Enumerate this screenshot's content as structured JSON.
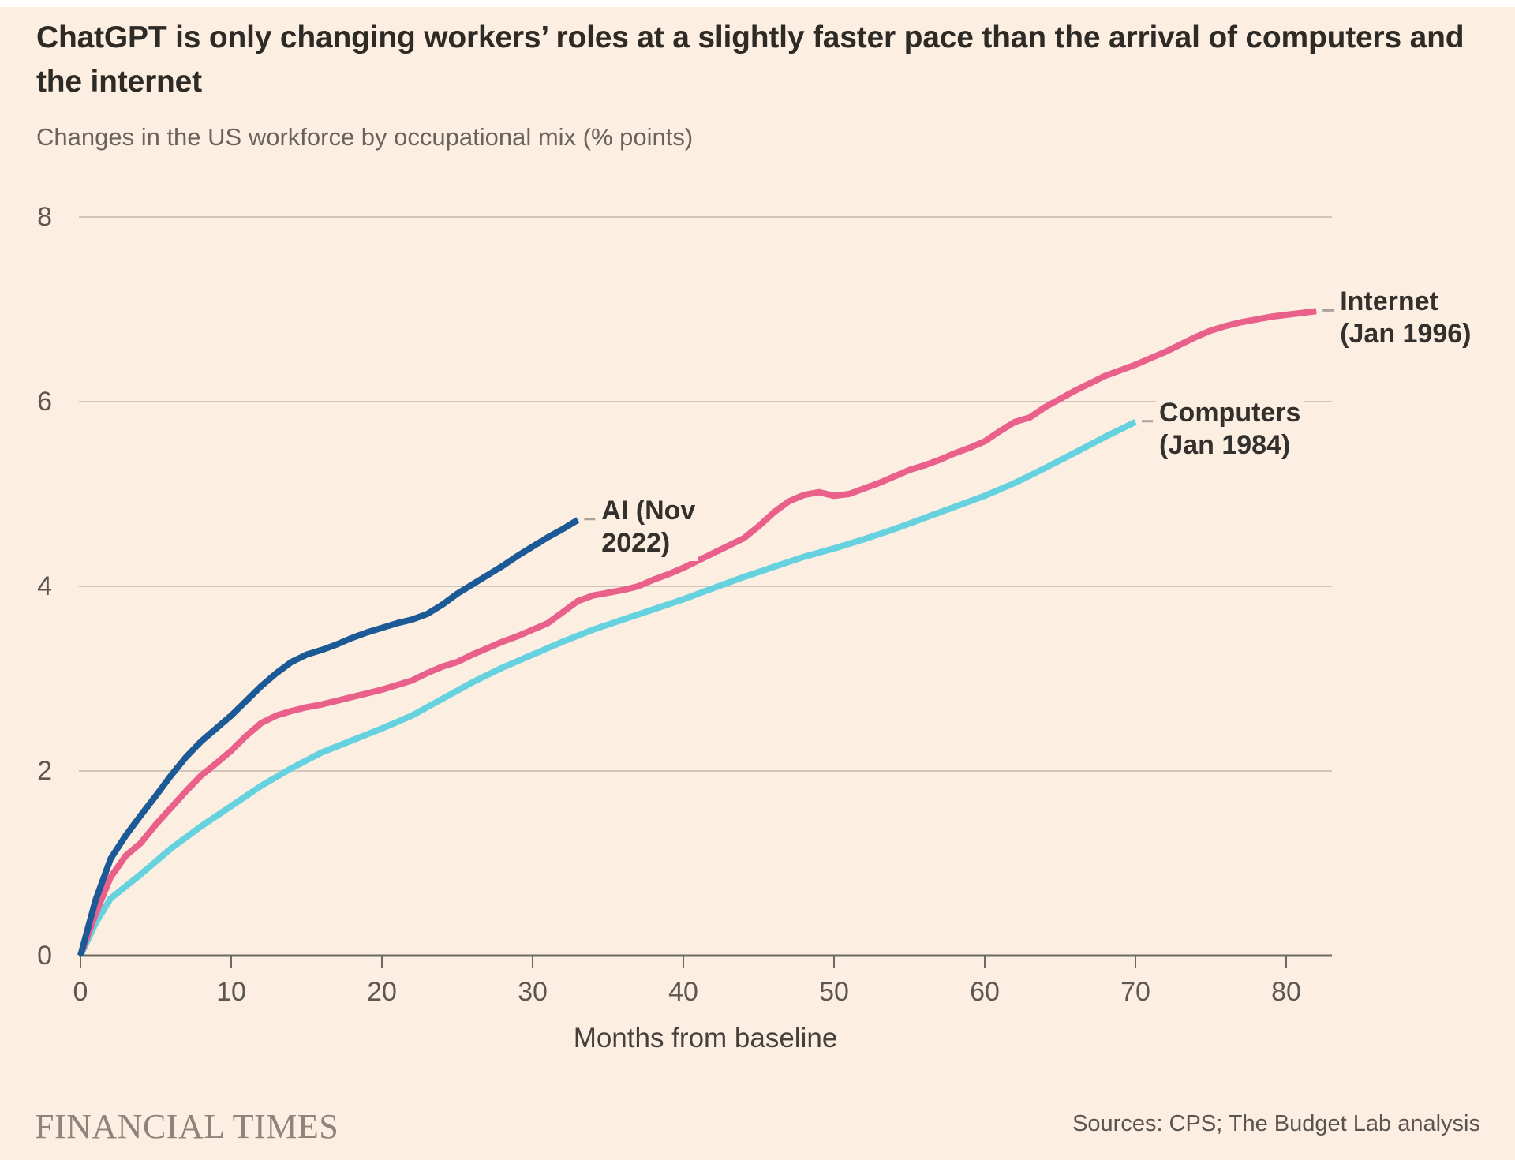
{
  "page": {
    "background": "#FCEFE2",
    "top_strip": "#FFFFFF"
  },
  "header": {
    "title_lines": [
      "ChatGPT is only changing workers’ roles at a slightly faster pace than the arrival of computers and",
      "the internet"
    ],
    "subtitle": "Changes in the US workforce by occupational mix (% points)"
  },
  "chart_data": {
    "type": "line",
    "title": "ChatGPT is only changing workers’ roles at a slightly faster pace than the arrival of computers and the internet",
    "subtitle": "Changes in the US workforce by occupational mix (% points)",
    "xlabel": "Months from baseline",
    "ylabel": "",
    "xlim": [
      0,
      83
    ],
    "ylim": [
      0,
      8
    ],
    "x_ticks": [
      0,
      10,
      20,
      30,
      40,
      50,
      60,
      70,
      80
    ],
    "y_ticks": [
      0,
      2,
      4,
      6,
      8
    ],
    "grid": "horizontal gridlines at y ticks, darker baseline at 0",
    "legend_position": "end-of-line labels",
    "colors": {
      "grid": "#D2C6BB",
      "axis": "#6E6862",
      "connector": "#A9A29B",
      "label_text": "#33302E",
      "tick_text": "#5D5751"
    },
    "series": [
      {
        "id": "computers",
        "name": "Computers (Jan 1984)",
        "label_lines": [
          "Computers",
          "(Jan 1984)"
        ],
        "color": "#66D2E0",
        "points": [
          [
            0,
            0
          ],
          [
            1,
            0.35
          ],
          [
            2,
            0.62
          ],
          [
            4,
            0.88
          ],
          [
            6,
            1.16
          ],
          [
            8,
            1.4
          ],
          [
            10,
            1.62
          ],
          [
            12,
            1.84
          ],
          [
            14,
            2.03
          ],
          [
            16,
            2.2
          ],
          [
            18,
            2.33
          ],
          [
            20,
            2.46
          ],
          [
            22,
            2.6
          ],
          [
            24,
            2.78
          ],
          [
            26,
            2.96
          ],
          [
            28,
            3.12
          ],
          [
            30,
            3.26
          ],
          [
            32,
            3.4
          ],
          [
            34,
            3.53
          ],
          [
            36,
            3.64
          ],
          [
            38,
            3.75
          ],
          [
            40,
            3.86
          ],
          [
            42,
            3.98
          ],
          [
            44,
            4.1
          ],
          [
            46,
            4.21
          ],
          [
            48,
            4.32
          ],
          [
            50,
            4.41
          ],
          [
            52,
            4.51
          ],
          [
            54,
            4.62
          ],
          [
            56,
            4.74
          ],
          [
            58,
            4.86
          ],
          [
            60,
            4.98
          ],
          [
            62,
            5.12
          ],
          [
            64,
            5.28
          ],
          [
            66,
            5.45
          ],
          [
            68,
            5.62
          ],
          [
            70,
            5.78
          ]
        ]
      },
      {
        "id": "internet",
        "name": "Internet (Jan 1996)",
        "label_lines": [
          "Internet",
          "(Jan 1996)"
        ],
        "color": "#E9608A",
        "points": [
          [
            0,
            0
          ],
          [
            1,
            0.45
          ],
          [
            2,
            0.85
          ],
          [
            3,
            1.08
          ],
          [
            4,
            1.22
          ],
          [
            5,
            1.42
          ],
          [
            6,
            1.6
          ],
          [
            7,
            1.78
          ],
          [
            8,
            1.95
          ],
          [
            9,
            2.08
          ],
          [
            10,
            2.22
          ],
          [
            11,
            2.38
          ],
          [
            12,
            2.52
          ],
          [
            13,
            2.6
          ],
          [
            14,
            2.65
          ],
          [
            15,
            2.69
          ],
          [
            16,
            2.72
          ],
          [
            17,
            2.76
          ],
          [
            18,
            2.8
          ],
          [
            19,
            2.84
          ],
          [
            20,
            2.88
          ],
          [
            21,
            2.93
          ],
          [
            22,
            2.98
          ],
          [
            23,
            3.06
          ],
          [
            24,
            3.13
          ],
          [
            25,
            3.18
          ],
          [
            26,
            3.26
          ],
          [
            27,
            3.33
          ],
          [
            28,
            3.4
          ],
          [
            29,
            3.46
          ],
          [
            30,
            3.53
          ],
          [
            31,
            3.6
          ],
          [
            32,
            3.72
          ],
          [
            33,
            3.84
          ],
          [
            34,
            3.9
          ],
          [
            35,
            3.93
          ],
          [
            36,
            3.96
          ],
          [
            37,
            4.0
          ],
          [
            38,
            4.07
          ],
          [
            39,
            4.13
          ],
          [
            40,
            4.2
          ],
          [
            41,
            4.28
          ],
          [
            42,
            4.36
          ],
          [
            43,
            4.44
          ],
          [
            44,
            4.52
          ],
          [
            45,
            4.65
          ],
          [
            46,
            4.8
          ],
          [
            47,
            4.92
          ],
          [
            48,
            4.99
          ],
          [
            49,
            5.02
          ],
          [
            50,
            4.98
          ],
          [
            51,
            5.0
          ],
          [
            52,
            5.06
          ],
          [
            53,
            5.12
          ],
          [
            54,
            5.19
          ],
          [
            55,
            5.26
          ],
          [
            56,
            5.31
          ],
          [
            57,
            5.37
          ],
          [
            58,
            5.44
          ],
          [
            59,
            5.5
          ],
          [
            60,
            5.57
          ],
          [
            61,
            5.68
          ],
          [
            62,
            5.78
          ],
          [
            63,
            5.83
          ],
          [
            64,
            5.94
          ],
          [
            65,
            6.03
          ],
          [
            66,
            6.12
          ],
          [
            67,
            6.2
          ],
          [
            68,
            6.28
          ],
          [
            69,
            6.34
          ],
          [
            70,
            6.4
          ],
          [
            71,
            6.47
          ],
          [
            72,
            6.54
          ],
          [
            73,
            6.62
          ],
          [
            74,
            6.7
          ],
          [
            75,
            6.77
          ],
          [
            76,
            6.82
          ],
          [
            77,
            6.86
          ],
          [
            78,
            6.89
          ],
          [
            79,
            6.92
          ],
          [
            80,
            6.94
          ],
          [
            81,
            6.96
          ],
          [
            82,
            6.98
          ]
        ]
      },
      {
        "id": "ai",
        "name": "AI (Nov 2022)",
        "label_lines": [
          "AI (Nov",
          "2022)"
        ],
        "color": "#1B5A96",
        "points": [
          [
            0,
            0
          ],
          [
            1,
            0.6
          ],
          [
            2,
            1.05
          ],
          [
            3,
            1.3
          ],
          [
            4,
            1.52
          ],
          [
            5,
            1.73
          ],
          [
            6,
            1.95
          ],
          [
            7,
            2.15
          ],
          [
            8,
            2.32
          ],
          [
            9,
            2.46
          ],
          [
            10,
            2.6
          ],
          [
            11,
            2.76
          ],
          [
            12,
            2.92
          ],
          [
            13,
            3.06
          ],
          [
            14,
            3.18
          ],
          [
            15,
            3.26
          ],
          [
            16,
            3.31
          ],
          [
            17,
            3.37
          ],
          [
            18,
            3.44
          ],
          [
            19,
            3.5
          ],
          [
            20,
            3.55
          ],
          [
            21,
            3.6
          ],
          [
            22,
            3.64
          ],
          [
            23,
            3.7
          ],
          [
            24,
            3.8
          ],
          [
            25,
            3.92
          ],
          [
            26,
            4.02
          ],
          [
            27,
            4.12
          ],
          [
            28,
            4.22
          ],
          [
            29,
            4.33
          ],
          [
            30,
            4.43
          ],
          [
            31,
            4.53
          ],
          [
            32,
            4.62
          ],
          [
            33,
            4.72
          ]
        ]
      }
    ]
  },
  "footer": {
    "brand": "FINANCIAL TIMES",
    "sources": "Sources: CPS; The Budget Lab analysis"
  }
}
